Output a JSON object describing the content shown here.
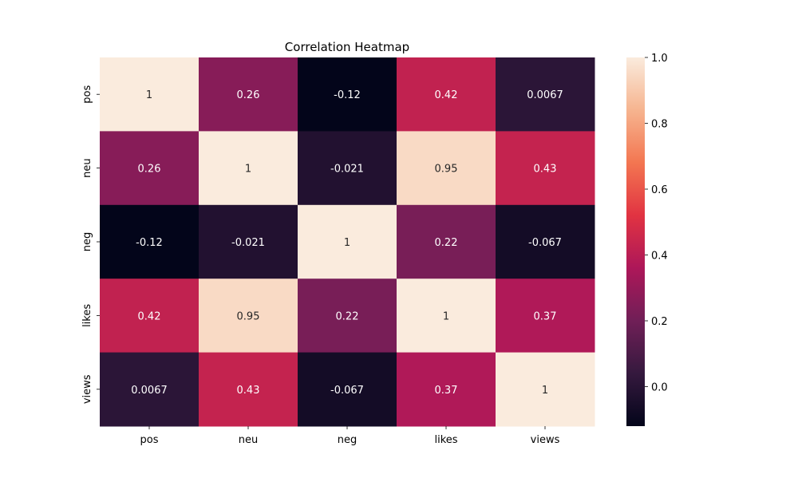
{
  "chart_data": {
    "type": "heatmap",
    "title": "Correlation Heatmap",
    "xlabel": "",
    "ylabel": "",
    "x_categories": [
      "pos",
      "neu",
      "neg",
      "likes",
      "views"
    ],
    "y_categories": [
      "pos",
      "neu",
      "neg",
      "likes",
      "views"
    ],
    "values": [
      [
        1,
        0.26,
        -0.12,
        0.42,
        0.0067
      ],
      [
        0.26,
        1,
        -0.021,
        0.95,
        0.43
      ],
      [
        -0.12,
        -0.021,
        1,
        0.22,
        -0.067
      ],
      [
        0.42,
        0.95,
        0.22,
        1,
        0.37
      ],
      [
        0.0067,
        0.43,
        -0.067,
        0.37,
        1
      ]
    ],
    "cell_labels": [
      [
        "1",
        "0.26",
        "-0.12",
        "0.42",
        "0.0067"
      ],
      [
        "0.26",
        "1",
        "-0.021",
        "0.95",
        "0.43"
      ],
      [
        "-0.12",
        "-0.021",
        "1",
        "0.22",
        "-0.067"
      ],
      [
        "0.42",
        "0.95",
        "0.22",
        "1",
        "0.37"
      ],
      [
        "0.0067",
        "0.43",
        "-0.067",
        "0.37",
        "1"
      ]
    ],
    "colorbar": {
      "min": -0.12,
      "max": 1.0,
      "ticks": [
        0.0,
        0.2,
        0.4,
        0.6,
        0.8,
        1.0
      ],
      "tick_labels": [
        "0.0",
        "0.2",
        "0.4",
        "0.6",
        "0.8",
        "1.0"
      ]
    },
    "colormap": "rocket",
    "colormap_stops": [
      "#03051a",
      "#35193e",
      "#701f57",
      "#ad1759",
      "#e13342",
      "#f37651",
      "#f6b48f",
      "#faebdd"
    ],
    "grid": false,
    "legend": "colorbar right"
  }
}
